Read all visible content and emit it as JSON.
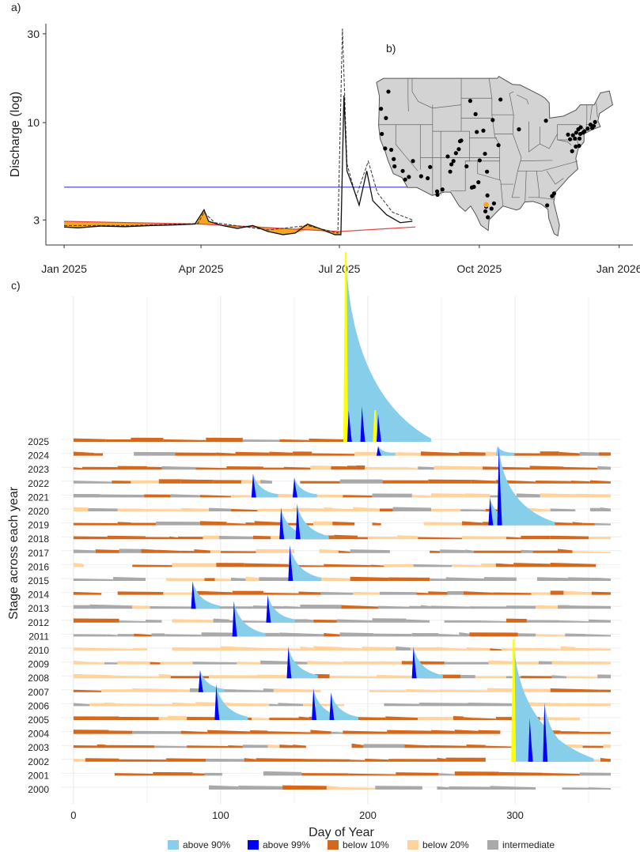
{
  "chart_data": [
    {
      "panel": "a)",
      "type": "line",
      "ylabel": "Discharge (log)",
      "y_scale": "log",
      "ylim": [
        2.2,
        34
      ],
      "y_ticks": [
        3,
        10,
        30
      ],
      "x_ticks": [
        "Jan 2025",
        "Apr 2025",
        "Jul 2025",
        "Oct 2025",
        "Jan 2026"
      ],
      "xlim": [
        "2024-12-20",
        "2026-01-10"
      ],
      "reference_lines": [
        {
          "name": "blue line",
          "color": "#3a3ad9",
          "value": 4.5,
          "x_range": [
            "2025-01-01",
            "2025-08-20"
          ]
        },
        {
          "name": "red line",
          "color": "#e04040",
          "values": [
            {
              "x": "2025-01-01",
              "y": 2.95
            },
            {
              "x": "2025-04-01",
              "y": 2.85
            },
            {
              "x": "2025-07-01",
              "y": 2.6
            },
            {
              "x": "2025-08-20",
              "y": 2.75
            }
          ]
        }
      ],
      "series": [
        {
          "style": "solid",
          "color": "#111111",
          "values": [
            {
              "x": "2025-01-01",
              "y": 2.75
            },
            {
              "x": "2025-01-10",
              "y": 2.72
            },
            {
              "x": "2025-01-25",
              "y": 2.78
            },
            {
              "x": "2025-02-10",
              "y": 2.76
            },
            {
              "x": "2025-02-28",
              "y": 2.8
            },
            {
              "x": "2025-03-15",
              "y": 2.82
            },
            {
              "x": "2025-03-28",
              "y": 2.85
            },
            {
              "x": "2025-04-03",
              "y": 3.4
            },
            {
              "x": "2025-04-06",
              "y": 2.95
            },
            {
              "x": "2025-04-15",
              "y": 2.8
            },
            {
              "x": "2025-04-25",
              "y": 2.7
            },
            {
              "x": "2025-05-05",
              "y": 2.8
            },
            {
              "x": "2025-05-15",
              "y": 2.6
            },
            {
              "x": "2025-05-25",
              "y": 2.5
            },
            {
              "x": "2025-06-02",
              "y": 2.55
            },
            {
              "x": "2025-06-10",
              "y": 2.85
            },
            {
              "x": "2025-06-18",
              "y": 2.7
            },
            {
              "x": "2025-06-28",
              "y": 2.5
            },
            {
              "x": "2025-07-02",
              "y": 2.5
            },
            {
              "x": "2025-07-04",
              "y": 14
            },
            {
              "x": "2025-07-06",
              "y": 5.5
            },
            {
              "x": "2025-07-10",
              "y": 4.5
            },
            {
              "x": "2025-07-14",
              "y": 3.6
            },
            {
              "x": "2025-07-19",
              "y": 5.5
            },
            {
              "x": "2025-07-23",
              "y": 3.8
            },
            {
              "x": "2025-08-01",
              "y": 3.2
            },
            {
              "x": "2025-08-10",
              "y": 2.9
            },
            {
              "x": "2025-08-18",
              "y": 2.95
            }
          ]
        },
        {
          "style": "dashed",
          "color": "#333333",
          "values": [
            {
              "x": "2025-01-01",
              "y": 2.8
            },
            {
              "x": "2025-02-15",
              "y": 2.8
            },
            {
              "x": "2025-03-30",
              "y": 2.87
            },
            {
              "x": "2025-04-03",
              "y": 3.3
            },
            {
              "x": "2025-04-10",
              "y": 2.9
            },
            {
              "x": "2025-05-15",
              "y": 2.65
            },
            {
              "x": "2025-06-10",
              "y": 2.8
            },
            {
              "x": "2025-06-30",
              "y": 2.55
            },
            {
              "x": "2025-07-03",
              "y": 32
            },
            {
              "x": "2025-07-06",
              "y": 6
            },
            {
              "x": "2025-07-12",
              "y": 4
            },
            {
              "x": "2025-07-20",
              "y": 6.2
            },
            {
              "x": "2025-07-26",
              "y": 4.2
            },
            {
              "x": "2025-08-05",
              "y": 3.3
            },
            {
              "x": "2025-08-18",
              "y": 3
            }
          ]
        }
      ],
      "fill_between": {
        "color": "#f5a623",
        "description": "area where discharge is below red line"
      }
    },
    {
      "panel": "b)",
      "type": "map",
      "region": "Contiguous United States",
      "marker_color": "#000000",
      "highlight_marker_color": "#f5a623",
      "sites": [
        [
          -121.8,
          47.0
        ],
        [
          -123.6,
          44.4
        ],
        [
          -122.4,
          43.0
        ],
        [
          -123.4,
          40.6
        ],
        [
          -122.6,
          38.4
        ],
        [
          -121.1,
          38.2
        ],
        [
          -120.5,
          36.8
        ],
        [
          -120.3,
          35.7
        ],
        [
          -118.3,
          35.0
        ],
        [
          -116.8,
          34.1
        ],
        [
          -117.7,
          33.7
        ],
        [
          -115.8,
          36.5
        ],
        [
          -113.8,
          34.2
        ],
        [
          -112.2,
          33.9
        ],
        [
          -111.6,
          35.6
        ],
        [
          -109.9,
          31.9
        ],
        [
          -109.8,
          31.4
        ],
        [
          -108.6,
          32.2
        ],
        [
          -107.3,
          37.2
        ],
        [
          -106.4,
          36.0
        ],
        [
          -106.7,
          34.9
        ],
        [
          -105.9,
          36.5
        ],
        [
          -105.3,
          37.7
        ],
        [
          -104.3,
          39.5
        ],
        [
          -104.6,
          38.3
        ],
        [
          -104.0,
          39.6
        ],
        [
          -102.7,
          35.7
        ],
        [
          -101.4,
          32.5
        ],
        [
          -100.9,
          32.6
        ],
        [
          -99.8,
          33.3
        ],
        [
          -99.5,
          36.6
        ],
        [
          -98.2,
          37.6
        ],
        [
          -97.7,
          34.9
        ],
        [
          -97.6,
          31.3
        ],
        [
          -97.9,
          29.6
        ],
        [
          -96.6,
          29.3
        ],
        [
          -96.0,
          30.1
        ],
        [
          -98.1,
          28.9
        ],
        [
          -97.5,
          28.0
        ],
        [
          -101.8,
          45.6
        ],
        [
          -100.5,
          43.6
        ],
        [
          -100.2,
          40.9
        ],
        [
          -98.6,
          41.1
        ],
        [
          -96.3,
          42.7
        ],
        [
          -94.4,
          45.8
        ],
        [
          -94.9,
          38.9
        ],
        [
          -89.9,
          41.3
        ],
        [
          -83.3,
          42.6
        ],
        [
          -83.0,
          29.8
        ],
        [
          -81.3,
          31.6
        ],
        [
          -81.8,
          31.2
        ],
        [
          -77.9,
          40.5
        ],
        [
          -77.4,
          39.8
        ],
        [
          -76.7,
          40.4
        ],
        [
          -76.2,
          39.9
        ],
        [
          -75.4,
          41.3
        ],
        [
          -75.9,
          40.8
        ],
        [
          -75.1,
          39.9
        ],
        [
          -74.9,
          40.6
        ],
        [
          -74.2,
          40.8
        ],
        [
          -73.9,
          41.0
        ],
        [
          -74.8,
          41.6
        ],
        [
          -73.1,
          41.4
        ],
        [
          -72.4,
          42.0
        ],
        [
          -72.0,
          41.5
        ],
        [
          -71.6,
          41.8
        ],
        [
          -71.3,
          42.4
        ],
        [
          -76.0,
          38.7
        ],
        [
          -76.9,
          38.0
        ],
        [
          -75.2,
          38.8
        ]
      ],
      "highlight_site": [
        -97.9,
        29.9
      ]
    },
    {
      "panel": "c)",
      "type": "area",
      "xlabel": "Day of Year",
      "ylabel": "Stage across each year",
      "xlim": [
        -8,
        372
      ],
      "x_ticks": [
        0,
        100,
        200,
        300
      ],
      "years": [
        "2025",
        "2024",
        "2023",
        "2022",
        "2021",
        "2020",
        "2019",
        "2018",
        "2017",
        "2016",
        "2015",
        "2014",
        "2013",
        "2012",
        "2011",
        "2010",
        "2009",
        "2008",
        "2007",
        "2006",
        "2005",
        "2004",
        "2003",
        "2002",
        "2001",
        "2000"
      ],
      "legend": [
        {
          "label": "above 90%",
          "color": "#87ceeb"
        },
        {
          "label": "above 99%",
          "color": "#0000ff"
        },
        {
          "label": "below 10%",
          "color": "#d2691e"
        },
        {
          "label": "below 20%",
          "color": "#ffd39b"
        },
        {
          "label": "intermediate",
          "color": "#a9a9a9"
        }
      ],
      "highlight_color": "#ffff00",
      "events": [
        {
          "year": "2025",
          "day": 185,
          "height": 240,
          "color": "#ffff00"
        },
        {
          "year": "2025",
          "day": 187,
          "height": 40,
          "color": "#0000ff"
        },
        {
          "year": "2025",
          "day": 196,
          "height": 45,
          "color": "#0000ff"
        },
        {
          "year": "2025",
          "day": 205,
          "height": 40,
          "color": "#ffff00"
        },
        {
          "year": "2025",
          "day": 207,
          "height": 35,
          "color": "#0000ff"
        },
        {
          "year": "2024",
          "day": 207,
          "height": 12,
          "color": "#0000ff"
        },
        {
          "year": "2024",
          "day": 288,
          "height": 12,
          "color": "#87ceeb"
        },
        {
          "year": "2021",
          "day": 122,
          "height": 30,
          "color": "#0000ff"
        },
        {
          "year": "2021",
          "day": 150,
          "height": 25,
          "color": "#0000ff"
        },
        {
          "year": "2019",
          "day": 283,
          "height": 35,
          "color": "#0000ff"
        },
        {
          "year": "2019",
          "day": 289,
          "height": 100,
          "color": "#0000ff"
        },
        {
          "year": "2018",
          "day": 141,
          "height": 40,
          "color": "#0000ff"
        },
        {
          "year": "2018",
          "day": 152,
          "height": 45,
          "color": "#0000ff"
        },
        {
          "year": "2015",
          "day": 147,
          "height": 45,
          "color": "#0000ff"
        },
        {
          "year": "2013",
          "day": 81,
          "height": 35,
          "color": "#0000ff"
        },
        {
          "year": "2012",
          "day": 132,
          "height": 35,
          "color": "#0000ff"
        },
        {
          "year": "2011",
          "day": 109,
          "height": 45,
          "color": "#0000ff"
        },
        {
          "year": "2008",
          "day": 146,
          "height": 40,
          "color": "#0000ff"
        },
        {
          "year": "2008",
          "day": 231,
          "height": 40,
          "color": "#0000ff"
        },
        {
          "year": "2007",
          "day": 86,
          "height": 28,
          "color": "#0000ff"
        },
        {
          "year": "2005",
          "day": 97,
          "height": 45,
          "color": "#0000ff"
        },
        {
          "year": "2005",
          "day": 163,
          "height": 40,
          "color": "#0000ff"
        },
        {
          "year": "2005",
          "day": 175,
          "height": 35,
          "color": "#0000ff"
        },
        {
          "year": "2002",
          "day": 299,
          "height": 155,
          "color": "#ffff00"
        },
        {
          "year": "2002",
          "day": 310,
          "height": 55,
          "color": "#0000ff"
        },
        {
          "year": "2002",
          "day": 320,
          "height": 75,
          "color": "#0000ff"
        }
      ]
    }
  ]
}
